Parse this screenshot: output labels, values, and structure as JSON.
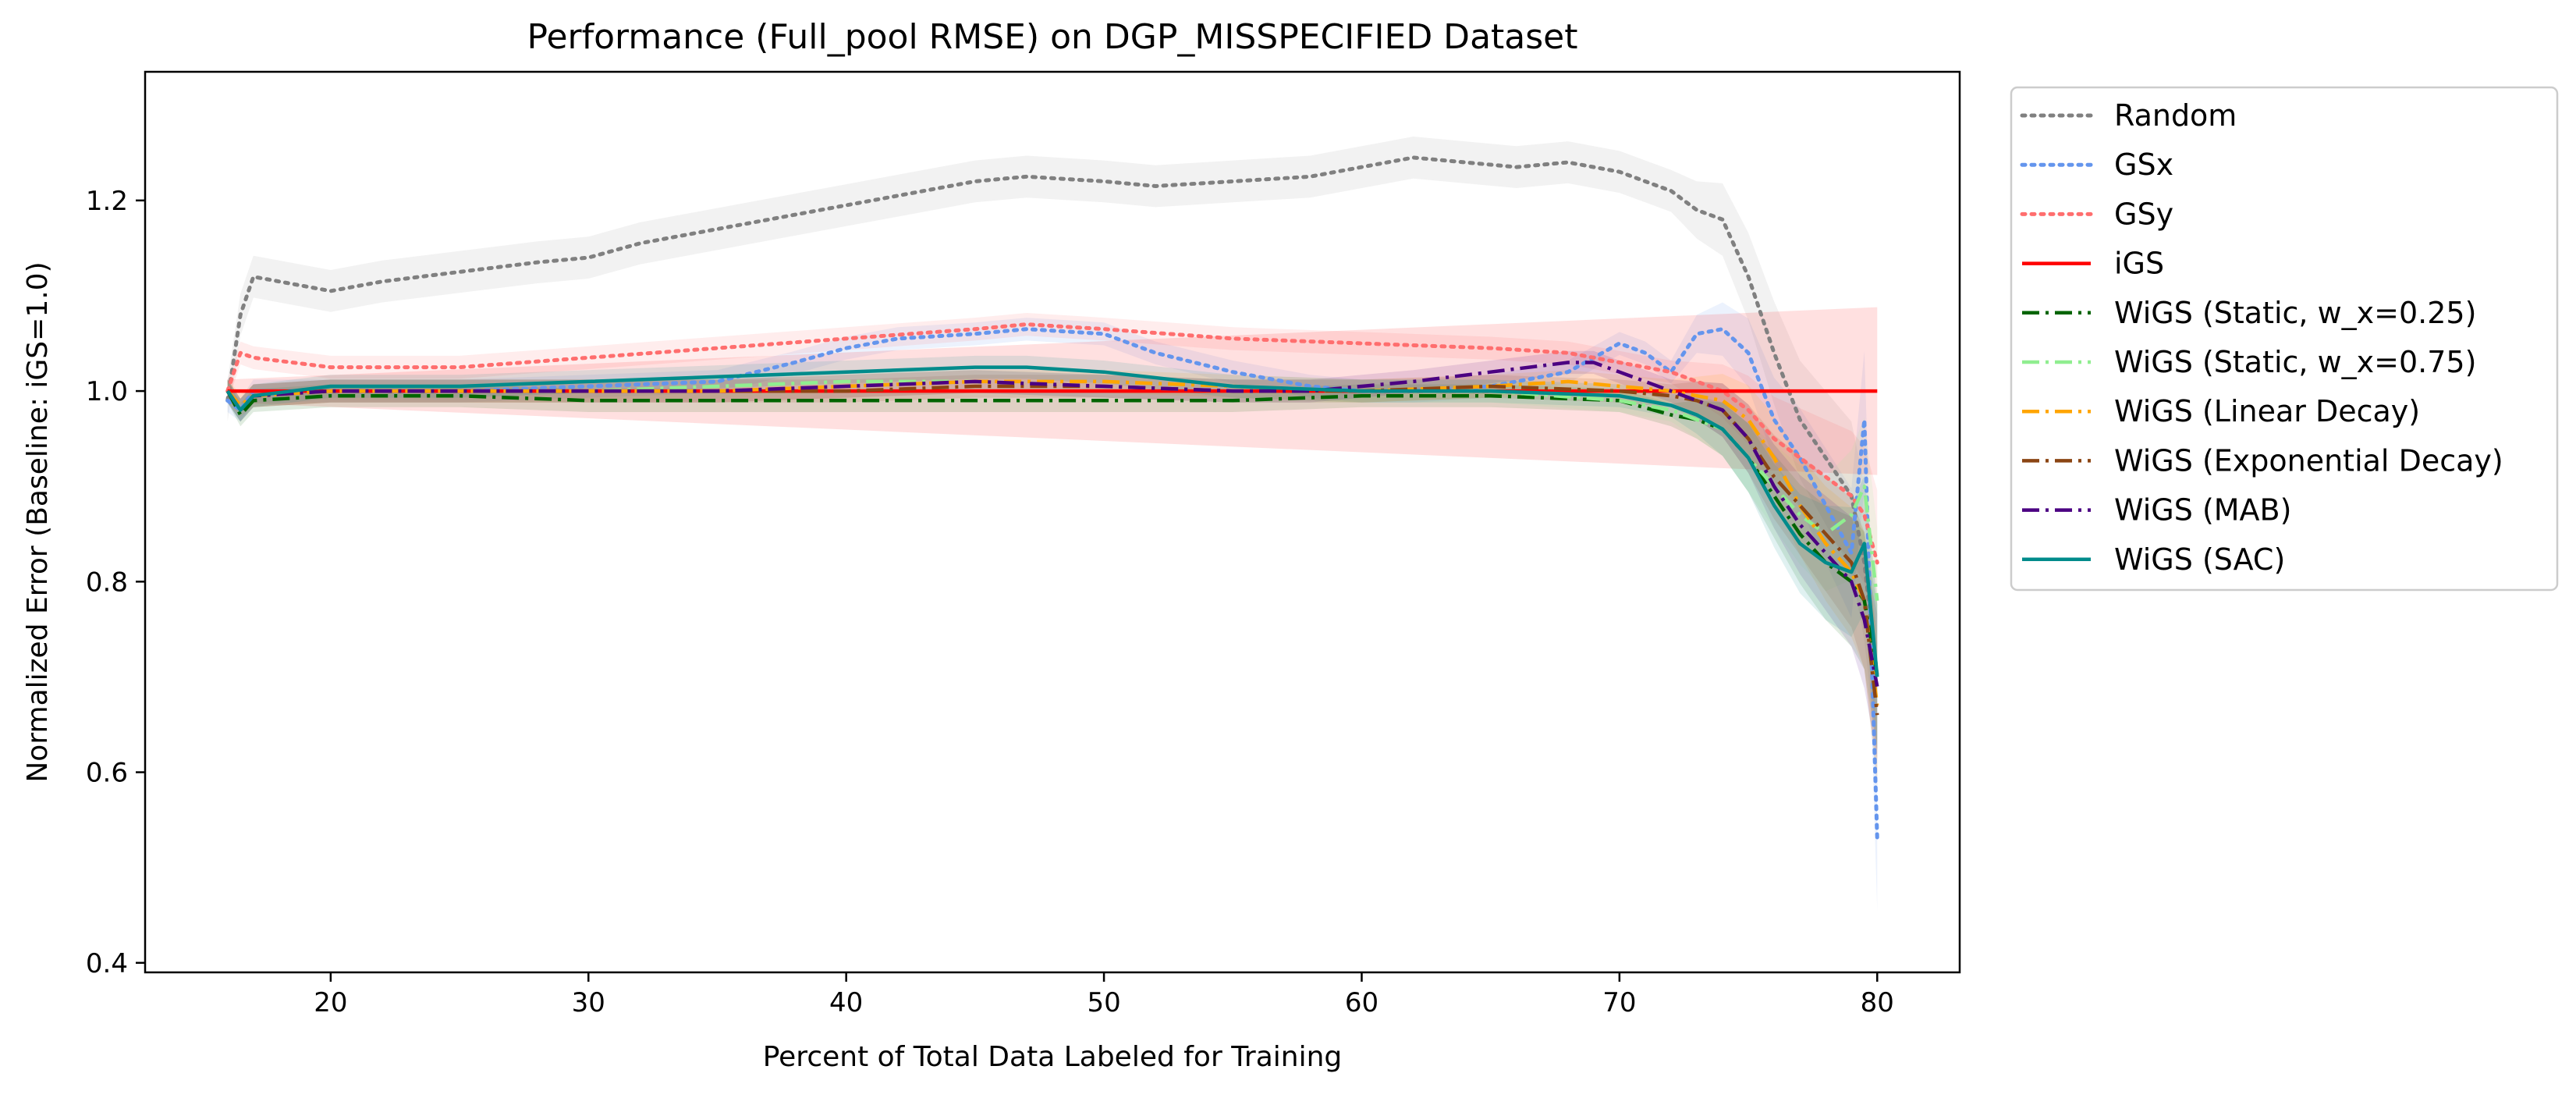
{
  "chart_data": {
    "type": "line",
    "title": "Performance (Full_pool RMSE) on DGP_MISSPECIFIED Dataset",
    "xlabel": "Percent of Total Data Labeled for Training",
    "ylabel": "Normalized Error (Baseline: iGS=1.0)",
    "xlim": [
      12.8,
      83.2
    ],
    "ylim": [
      0.39,
      1.335
    ],
    "xticks": [
      20,
      30,
      40,
      50,
      60,
      70,
      80
    ],
    "yticks": [
      0.4,
      0.6,
      0.8,
      1.0,
      1.2
    ],
    "legend_position": "outside-right-top",
    "grid": false,
    "series": [
      {
        "name": "Random",
        "color": "#808080",
        "style": "dotted",
        "band": true,
        "x": [
          16,
          16.5,
          17,
          18,
          20,
          22,
          25,
          28,
          30,
          32,
          35,
          38,
          40,
          42,
          45,
          47,
          50,
          52,
          55,
          58,
          60,
          62,
          64,
          66,
          68,
          70,
          71,
          72,
          73,
          74,
          75,
          76,
          77,
          78,
          79,
          79.5,
          80
        ],
        "y": [
          0.99,
          1.08,
          1.12,
          1.115,
          1.105,
          1.115,
          1.125,
          1.135,
          1.14,
          1.155,
          1.17,
          1.185,
          1.195,
          1.205,
          1.22,
          1.225,
          1.22,
          1.215,
          1.22,
          1.225,
          1.235,
          1.245,
          1.24,
          1.235,
          1.24,
          1.23,
          1.22,
          1.21,
          1.19,
          1.18,
          1.12,
          1.04,
          0.97,
          0.93,
          0.89,
          0.82,
          0.7
        ]
      },
      {
        "name": "GSx",
        "color": "#6495ED",
        "style": "dotted",
        "band": true,
        "x": [
          16,
          16.5,
          17,
          20,
          25,
          30,
          35,
          38,
          40,
          42,
          45,
          47,
          50,
          52,
          55,
          58,
          60,
          62,
          65,
          68,
          70,
          71,
          72,
          73,
          74,
          75,
          76,
          77,
          78,
          79,
          79.5,
          80
        ],
        "y": [
          0.99,
          0.98,
          1.0,
          1.0,
          1.0,
          1.005,
          1.01,
          1.03,
          1.045,
          1.055,
          1.06,
          1.065,
          1.06,
          1.04,
          1.02,
          1.005,
          1.0,
          1.0,
          1.005,
          1.02,
          1.05,
          1.04,
          1.02,
          1.06,
          1.065,
          1.04,
          0.97,
          0.93,
          0.88,
          0.83,
          0.97,
          0.53
        ]
      },
      {
        "name": "GSy",
        "color": "#FF6E6E",
        "style": "dotted",
        "band": true,
        "x": [
          16,
          16.5,
          17,
          20,
          25,
          30,
          35,
          40,
          45,
          47,
          50,
          55,
          60,
          65,
          68,
          70,
          72,
          74,
          75,
          76,
          77,
          78,
          79,
          79.5,
          80
        ],
        "y": [
          1.0,
          1.04,
          1.035,
          1.025,
          1.025,
          1.035,
          1.045,
          1.055,
          1.065,
          1.07,
          1.065,
          1.055,
          1.05,
          1.045,
          1.04,
          1.03,
          1.02,
          1.0,
          0.98,
          0.95,
          0.93,
          0.91,
          0.89,
          0.87,
          0.82
        ]
      },
      {
        "name": "iGS",
        "color": "#FF0000",
        "style": "solid",
        "band": true,
        "x": [
          16,
          80
        ],
        "y": [
          1.0,
          1.0
        ]
      },
      {
        "name": "WiGS (Static, w_x=0.25)",
        "color": "#006400",
        "style": "dashdot",
        "band": true,
        "x": [
          16,
          16.5,
          17,
          20,
          25,
          30,
          35,
          40,
          45,
          50,
          55,
          60,
          65,
          70,
          72,
          73,
          74,
          75,
          76,
          77,
          78,
          79,
          79.5,
          80
        ],
        "y": [
          1.0,
          0.975,
          0.99,
          0.995,
          0.995,
          0.99,
          0.99,
          0.99,
          0.99,
          0.99,
          0.99,
          0.995,
          0.995,
          0.99,
          0.975,
          0.97,
          0.96,
          0.93,
          0.89,
          0.85,
          0.82,
          0.8,
          0.78,
          0.7
        ]
      },
      {
        "name": "WiGS (Static, w_x=0.75)",
        "color": "#90EE90",
        "style": "dashdot",
        "band": true,
        "x": [
          16,
          16.5,
          17,
          20,
          25,
          30,
          35,
          40,
          45,
          50,
          55,
          60,
          65,
          70,
          72,
          74,
          75,
          76,
          77,
          78,
          79,
          79.5,
          80
        ],
        "y": [
          1.0,
          0.98,
          0.995,
          1.0,
          1.0,
          1.0,
          1.005,
          1.01,
          1.01,
          1.005,
          1.0,
          1.0,
          1.0,
          0.99,
          0.98,
          0.96,
          0.93,
          0.9,
          0.87,
          0.85,
          0.87,
          0.9,
          0.78
        ]
      },
      {
        "name": "WiGS (Linear Decay)",
        "color": "#FFA500",
        "style": "dashdot",
        "band": true,
        "x": [
          16,
          16.5,
          17,
          20,
          25,
          30,
          35,
          40,
          45,
          50,
          55,
          60,
          65,
          68,
          70,
          72,
          74,
          75,
          76,
          77,
          78,
          79,
          79.5,
          80
        ],
        "y": [
          1.0,
          0.985,
          0.995,
          1.0,
          1.0,
          1.0,
          1.0,
          1.005,
          1.01,
          1.01,
          1.005,
          1.0,
          1.005,
          1.01,
          1.005,
          1.0,
          0.99,
          0.97,
          0.93,
          0.88,
          0.84,
          0.81,
          0.78,
          0.67
        ]
      },
      {
        "name": "WiGS (Exponential Decay)",
        "color": "#8B4513",
        "style": "dashdot",
        "band": true,
        "x": [
          16,
          16.5,
          17,
          20,
          25,
          30,
          35,
          40,
          45,
          50,
          55,
          60,
          65,
          70,
          72,
          73,
          74,
          75,
          76,
          77,
          78,
          79,
          79.5,
          80
        ],
        "y": [
          1.0,
          0.98,
          0.995,
          1.0,
          1.0,
          1.0,
          1.0,
          1.0,
          1.005,
          1.005,
          1.0,
          1.0,
          1.005,
          1.0,
          0.995,
          0.99,
          0.98,
          0.95,
          0.91,
          0.88,
          0.85,
          0.82,
          0.78,
          0.66
        ]
      },
      {
        "name": "WiGS (MAB)",
        "color": "#4B0082",
        "style": "dashdot",
        "band": true,
        "x": [
          16,
          16.5,
          17,
          20,
          25,
          30,
          35,
          40,
          45,
          50,
          55,
          58,
          60,
          62,
          65,
          68,
          69,
          70,
          72,
          74,
          75,
          76,
          77,
          78,
          79,
          79.5,
          80
        ],
        "y": [
          1.0,
          0.98,
          0.995,
          1.0,
          1.0,
          1.0,
          1.0,
          1.005,
          1.01,
          1.005,
          1.0,
          1.0,
          1.005,
          1.01,
          1.02,
          1.03,
          1.03,
          1.02,
          1.0,
          0.98,
          0.95,
          0.9,
          0.86,
          0.83,
          0.8,
          0.76,
          0.69
        ]
      },
      {
        "name": "WiGS (SAC)",
        "color": "#008B8B",
        "style": "solid",
        "band": true,
        "x": [
          16,
          16.5,
          17,
          20,
          25,
          30,
          35,
          40,
          45,
          47,
          50,
          55,
          60,
          65,
          70,
          72,
          73,
          74,
          75,
          76,
          77,
          78,
          79,
          79.5,
          80
        ],
        "y": [
          1.0,
          0.98,
          0.995,
          1.005,
          1.005,
          1.01,
          1.015,
          1.02,
          1.025,
          1.025,
          1.02,
          1.005,
          1.0,
          1.0,
          0.995,
          0.985,
          0.975,
          0.96,
          0.93,
          0.88,
          0.84,
          0.82,
          0.81,
          0.84,
          0.7
        ]
      }
    ]
  }
}
